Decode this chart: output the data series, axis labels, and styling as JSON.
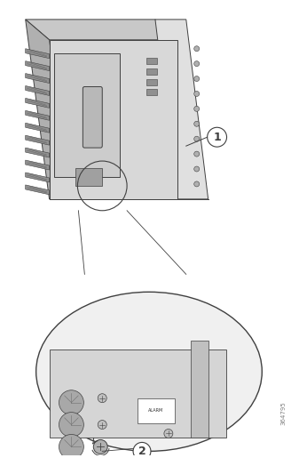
{
  "bg_color": "#ffffff",
  "fig_width": 3.28,
  "fig_height": 5.15,
  "dpi": 100,
  "watermark_text": "364795",
  "callout1_label": "1",
  "callout2_label": "2",
  "router_color": "#d0d0d0",
  "line_color": "#404040",
  "circle_color": "#e8e8e8",
  "annotation_circle_color": "#505050"
}
